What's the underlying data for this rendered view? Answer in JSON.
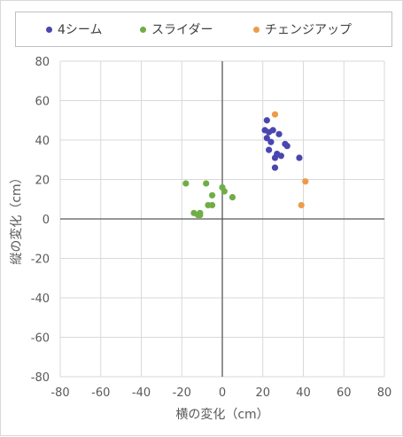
{
  "chart_data": {
    "type": "scatter",
    "title": "",
    "xlabel": "横の変化（cm）",
    "ylabel": "縦の変化（cm）",
    "xlim": [
      -80,
      80
    ],
    "ylim": [
      -80,
      80
    ],
    "x_ticks": [
      "-80",
      "-60",
      "-40",
      "-20",
      "0",
      "20",
      "40",
      "60",
      "80"
    ],
    "y_ticks": [
      "80",
      "60",
      "40",
      "20",
      "0",
      "-20",
      "-40",
      "-60",
      "-80"
    ],
    "grid": true,
    "legend_position": "top",
    "series": [
      {
        "name": "4シーム",
        "color": "#4a46b0",
        "points": [
          [
            22,
            50
          ],
          [
            21,
            45
          ],
          [
            23,
            44
          ],
          [
            25,
            45
          ],
          [
            28,
            43
          ],
          [
            22,
            41
          ],
          [
            24,
            39
          ],
          [
            23,
            35
          ],
          [
            31,
            38
          ],
          [
            32,
            37
          ],
          [
            27,
            33
          ],
          [
            29,
            32
          ],
          [
            26,
            31
          ],
          [
            38,
            31
          ],
          [
            26,
            26
          ]
        ]
      },
      {
        "name": "スライダー",
        "color": "#70ad47",
        "points": [
          [
            -18,
            18
          ],
          [
            -8,
            18
          ],
          [
            0,
            16
          ],
          [
            1,
            14
          ],
          [
            5,
            11
          ],
          [
            -5,
            12
          ],
          [
            -5,
            7
          ],
          [
            -7,
            7
          ],
          [
            -14,
            3
          ],
          [
            -11,
            3
          ],
          [
            -12,
            2
          ],
          [
            -11,
            2
          ]
        ]
      },
      {
        "name": "チェンジアップ",
        "color": "#ed9b4a",
        "points": [
          [
            26,
            53
          ],
          [
            41,
            19
          ],
          [
            39,
            7
          ]
        ]
      }
    ]
  }
}
